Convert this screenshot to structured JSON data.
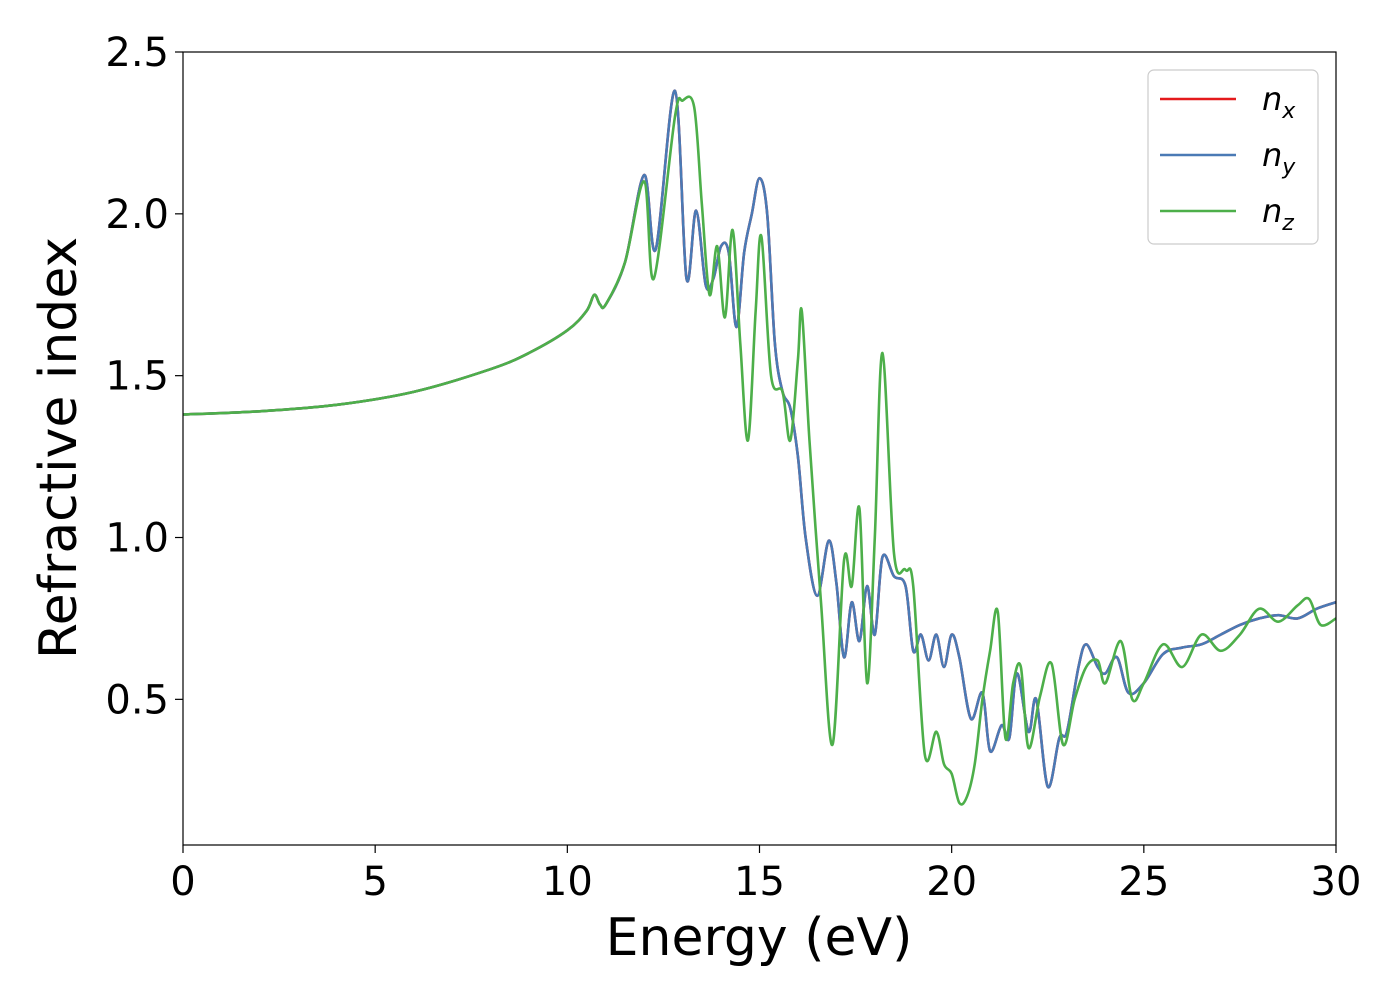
{
  "chart_data": {
    "type": "line",
    "title": "",
    "xlabel": "Energy (eV)",
    "ylabel": "Refractive index",
    "xlim": [
      0,
      30
    ],
    "ylim": [
      0.05,
      2.5
    ],
    "xticks": [
      0,
      5,
      10,
      15,
      20,
      25,
      30
    ],
    "xtick_labels": [
      "0",
      "5",
      "10",
      "15",
      "20",
      "25",
      "30"
    ],
    "yticks": [
      0.5,
      1.0,
      1.5,
      2.0,
      2.5
    ],
    "ytick_labels": [
      "0.5",
      "1.0",
      "1.5",
      "2.0",
      "2.5"
    ],
    "grid": false,
    "legend_position": "top-right",
    "series": [
      {
        "name": "n_x",
        "legend_base": "n",
        "legend_sub": "x",
        "color": "#e41a1c",
        "x": [
          0,
          2,
          4,
          6,
          8,
          9,
          10,
          10.5,
          10.7,
          10.85,
          11,
          11.5,
          12,
          12.3,
          12.8,
          13.1,
          13.35,
          13.6,
          13.8,
          14.0,
          14.2,
          14.4,
          14.6,
          14.8,
          15.0,
          15.2,
          15.4,
          15.6,
          15.8,
          16.0,
          16.2,
          16.5,
          16.8,
          17.0,
          17.2,
          17.4,
          17.6,
          17.8,
          18.0,
          18.2,
          18.5,
          18.8,
          19.0,
          19.2,
          19.4,
          19.6,
          19.8,
          20.0,
          20.2,
          20.5,
          20.8,
          21.0,
          21.3,
          21.5,
          21.7,
          22.0,
          22.2,
          22.5,
          22.8,
          23.0,
          23.3,
          23.5,
          23.8,
          24.0,
          24.3,
          24.6,
          25.0,
          25.5,
          26.0,
          26.5,
          27.0,
          27.5,
          28.0,
          28.5,
          29.0,
          29.5,
          30.0
        ],
        "y": [
          1.38,
          1.39,
          1.41,
          1.45,
          1.52,
          1.57,
          1.64,
          1.7,
          1.75,
          1.72,
          1.72,
          1.85,
          2.12,
          1.89,
          2.38,
          1.8,
          2.01,
          1.78,
          1.8,
          1.9,
          1.88,
          1.65,
          1.88,
          2.0,
          2.11,
          2.0,
          1.6,
          1.45,
          1.4,
          1.25,
          1.0,
          0.82,
          0.99,
          0.86,
          0.63,
          0.8,
          0.68,
          0.85,
          0.7,
          0.94,
          0.88,
          0.85,
          0.65,
          0.7,
          0.62,
          0.7,
          0.6,
          0.7,
          0.63,
          0.44,
          0.52,
          0.34,
          0.42,
          0.38,
          0.58,
          0.4,
          0.5,
          0.23,
          0.38,
          0.4,
          0.6,
          0.67,
          0.6,
          0.58,
          0.63,
          0.52,
          0.55,
          0.64,
          0.66,
          0.67,
          0.7,
          0.73,
          0.75,
          0.76,
          0.75,
          0.78,
          0.8
        ]
      },
      {
        "name": "n_y",
        "legend_base": "n",
        "legend_sub": "y",
        "color": "#4a7ab5",
        "x": [
          0,
          2,
          4,
          6,
          8,
          9,
          10,
          10.5,
          10.7,
          10.85,
          11,
          11.5,
          12,
          12.3,
          12.8,
          13.1,
          13.35,
          13.6,
          13.8,
          14.0,
          14.2,
          14.4,
          14.6,
          14.8,
          15.0,
          15.2,
          15.4,
          15.6,
          15.8,
          16.0,
          16.2,
          16.5,
          16.8,
          17.0,
          17.2,
          17.4,
          17.6,
          17.8,
          18.0,
          18.2,
          18.5,
          18.8,
          19.0,
          19.2,
          19.4,
          19.6,
          19.8,
          20.0,
          20.2,
          20.5,
          20.8,
          21.0,
          21.3,
          21.5,
          21.7,
          22.0,
          22.2,
          22.5,
          22.8,
          23.0,
          23.3,
          23.5,
          23.8,
          24.0,
          24.3,
          24.6,
          25.0,
          25.5,
          26.0,
          26.5,
          27.0,
          27.5,
          28.0,
          28.5,
          29.0,
          29.5,
          30.0
        ],
        "y": [
          1.38,
          1.39,
          1.41,
          1.45,
          1.52,
          1.57,
          1.64,
          1.7,
          1.75,
          1.72,
          1.72,
          1.85,
          2.12,
          1.89,
          2.38,
          1.8,
          2.01,
          1.78,
          1.8,
          1.9,
          1.88,
          1.65,
          1.88,
          2.0,
          2.11,
          2.0,
          1.6,
          1.45,
          1.4,
          1.25,
          1.0,
          0.82,
          0.99,
          0.86,
          0.63,
          0.8,
          0.68,
          0.85,
          0.7,
          0.94,
          0.88,
          0.85,
          0.65,
          0.7,
          0.62,
          0.7,
          0.6,
          0.7,
          0.63,
          0.44,
          0.52,
          0.34,
          0.42,
          0.38,
          0.58,
          0.4,
          0.5,
          0.23,
          0.38,
          0.4,
          0.6,
          0.67,
          0.6,
          0.58,
          0.63,
          0.52,
          0.55,
          0.64,
          0.66,
          0.67,
          0.7,
          0.73,
          0.75,
          0.76,
          0.75,
          0.78,
          0.8
        ]
      },
      {
        "name": "n_z",
        "legend_base": "n",
        "legend_sub": "z",
        "color": "#4daf4a",
        "x": [
          0,
          2,
          4,
          6,
          8,
          9,
          10,
          10.5,
          10.7,
          10.85,
          11,
          11.5,
          12,
          12.25,
          12.8,
          13.0,
          13.3,
          13.5,
          13.7,
          13.9,
          14.1,
          14.3,
          14.5,
          14.7,
          14.9,
          15.05,
          15.3,
          15.6,
          15.8,
          16.0,
          16.1,
          16.3,
          16.6,
          16.9,
          17.2,
          17.4,
          17.6,
          17.8,
          18.0,
          18.2,
          18.5,
          18.8,
          19.0,
          19.3,
          19.6,
          19.8,
          20.0,
          20.2,
          20.4,
          20.6,
          20.8,
          21.0,
          21.2,
          21.4,
          21.6,
          21.8,
          22.0,
          22.3,
          22.6,
          22.9,
          23.2,
          23.5,
          23.8,
          24.0,
          24.4,
          24.7,
          25.0,
          25.5,
          26.0,
          26.5,
          27.0,
          27.5,
          28.0,
          28.5,
          29.0,
          29.3,
          29.6,
          30.0
        ],
        "y": [
          1.38,
          1.39,
          1.41,
          1.45,
          1.52,
          1.57,
          1.64,
          1.7,
          1.75,
          1.72,
          1.72,
          1.85,
          2.1,
          1.8,
          2.3,
          2.35,
          2.33,
          2.03,
          1.75,
          1.9,
          1.68,
          1.95,
          1.6,
          1.3,
          1.7,
          1.93,
          1.5,
          1.45,
          1.3,
          1.55,
          1.7,
          1.3,
          0.8,
          0.36,
          0.93,
          0.85,
          1.09,
          0.55,
          1.0,
          1.57,
          0.95,
          0.9,
          0.85,
          0.33,
          0.4,
          0.3,
          0.27,
          0.18,
          0.2,
          0.3,
          0.5,
          0.65,
          0.77,
          0.38,
          0.55,
          0.6,
          0.35,
          0.51,
          0.61,
          0.36,
          0.5,
          0.6,
          0.62,
          0.55,
          0.68,
          0.5,
          0.55,
          0.67,
          0.6,
          0.7,
          0.65,
          0.7,
          0.78,
          0.74,
          0.79,
          0.81,
          0.73,
          0.75
        ]
      }
    ]
  }
}
